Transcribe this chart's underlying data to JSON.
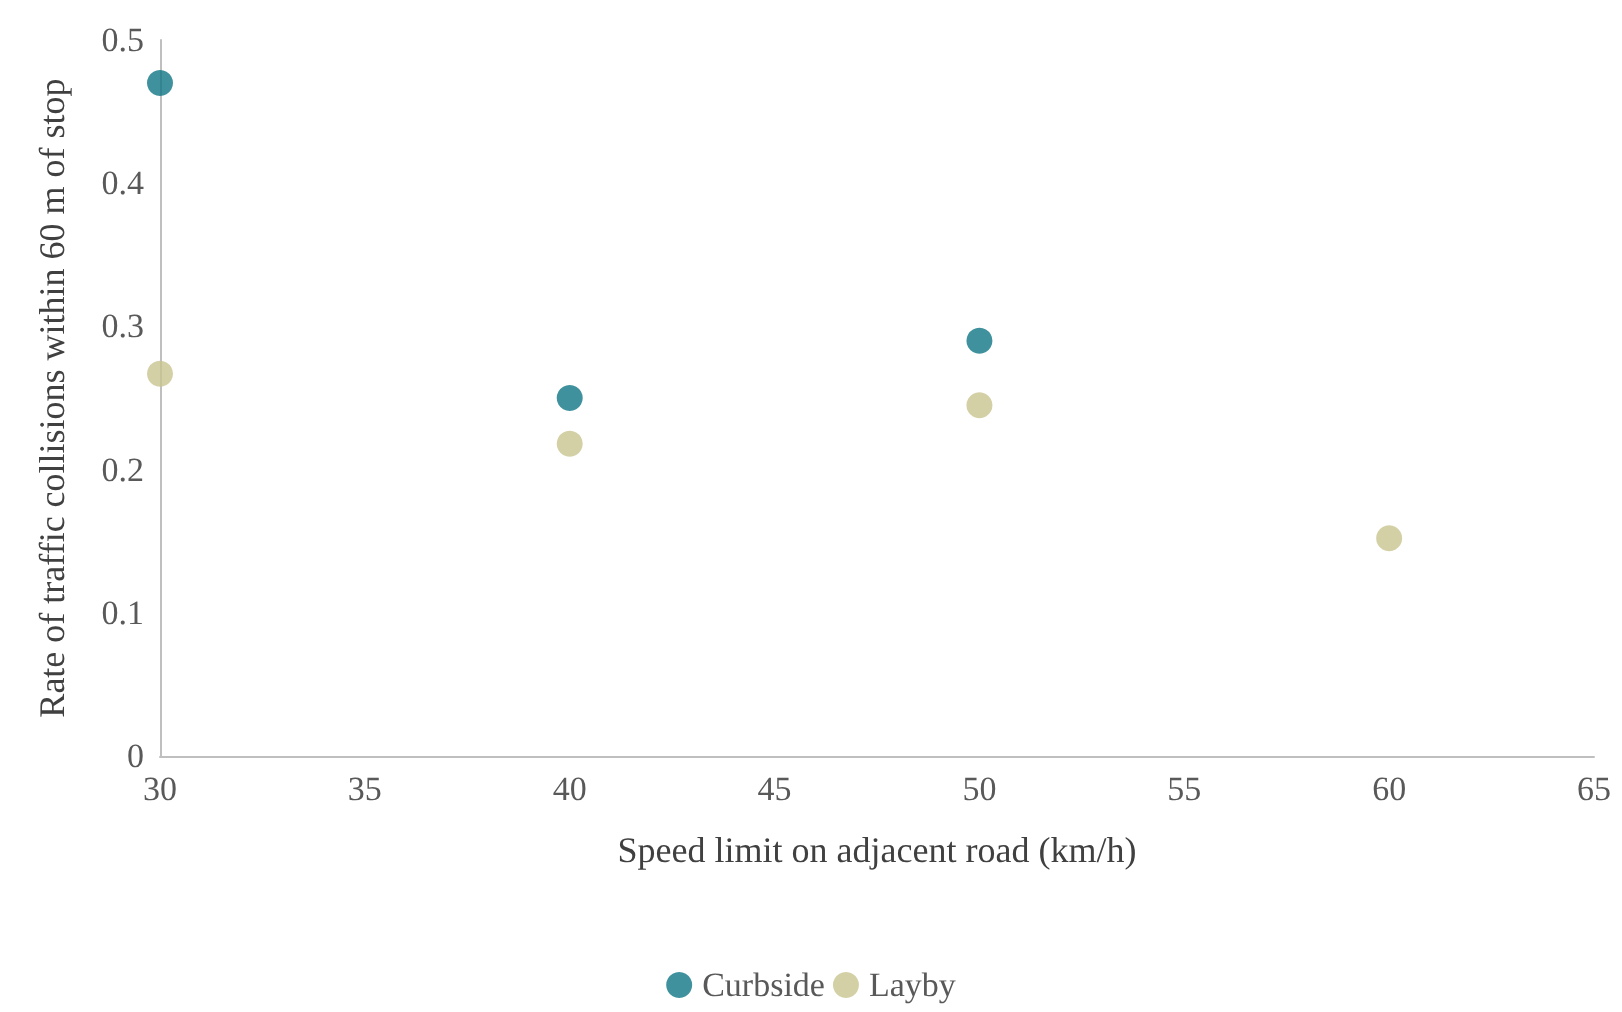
{
  "chart_data": {
    "type": "scatter",
    "xlabel": "Speed limit on adjacent road (km/h)",
    "ylabel": "Rate of traffic collisions within 60 m of stop",
    "series": [
      {
        "name": "Curbside",
        "color": "#0f7585",
        "x": [
          30,
          40,
          50
        ],
        "values": [
          0.47,
          0.25,
          0.29
        ]
      },
      {
        "name": "Layby",
        "color": "#c8c48e",
        "x": [
          30,
          40,
          50,
          60
        ],
        "values": [
          0.267,
          0.218,
          0.245,
          0.152
        ]
      }
    ],
    "xlim": [
      30,
      65
    ],
    "xticks": [
      30,
      35,
      40,
      45,
      50,
      55,
      60,
      65
    ],
    "ylim": [
      0,
      0.5
    ],
    "yticks": [
      0,
      0.1,
      0.2,
      0.3,
      0.4,
      0.5
    ],
    "grid": false,
    "legend": "bottom",
    "marker": "circle"
  }
}
